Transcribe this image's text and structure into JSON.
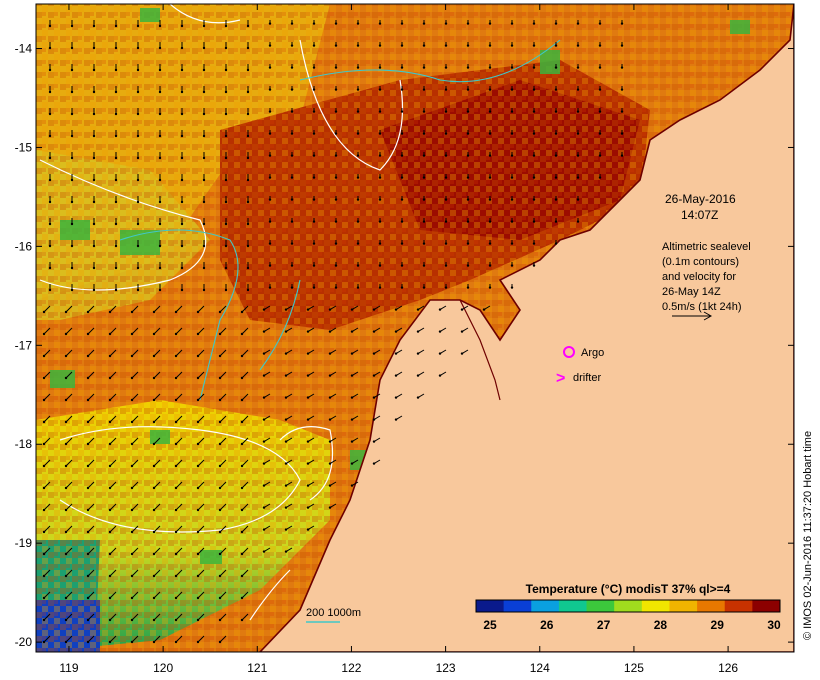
{
  "map": {
    "lon_ticks": [
      "119",
      "120",
      "121",
      "122",
      "123",
      "124",
      "125",
      "126"
    ],
    "lat_ticks": [
      "-14",
      "-15",
      "-16",
      "-17",
      "-18",
      "-19",
      "-20"
    ],
    "lon_range": [
      118.65,
      126.7
    ],
    "lat_range": [
      -13.55,
      -20.1
    ]
  },
  "annotations": {
    "date": "26-May-2016",
    "time": "14:07Z",
    "sealevel_lines": [
      "Altimetric sealevel",
      "(0.1m contours)",
      "and velocity for",
      "26-May 14Z",
      "0.5m/s (1kt 24h)"
    ],
    "argo_label": "Argo",
    "drifter_label": "drifter",
    "drifter_marker": ">",
    "depth_label": "200  1000m"
  },
  "colorbar": {
    "title": "Temperature (°C) modisT 37% ql>=4",
    "ticks": [
      "25",
      "26",
      "27",
      "28",
      "29",
      "30"
    ],
    "colors": [
      "#0a1a8c",
      "#0a3fd6",
      "#0aa0e0",
      "#10c890",
      "#3cc83c",
      "#a0dc1e",
      "#f0e600",
      "#f0b400",
      "#e87800",
      "#c83200",
      "#8c0000"
    ]
  },
  "credit": "© IMOS 02-Jun-2016 11:37:20 Hobart time",
  "colors": {
    "land": "#f8c89c",
    "coast": "#6e0000",
    "ocean_warm": "#b43200",
    "ocean_mid": "#e89010",
    "ocean_cool": "#f0d800"
  }
}
